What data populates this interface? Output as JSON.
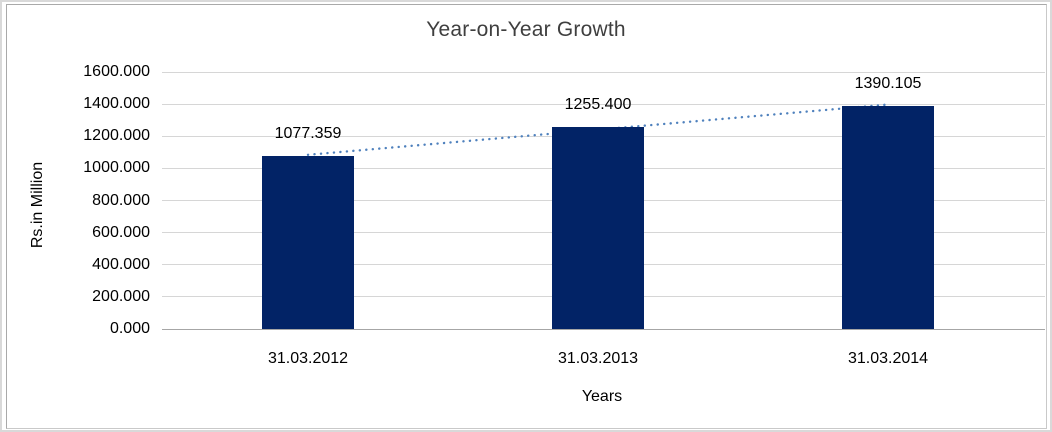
{
  "chart_data": {
    "type": "bar",
    "title": "Year-on-Year Growth",
    "xlabel": "Years",
    "ylabel": "Rs.in Million",
    "categories": [
      "31.03.2012",
      "31.03.2013",
      "31.03.2014"
    ],
    "values": [
      1077.359,
      1255.4,
      1390.105
    ],
    "value_labels": [
      "1077.359",
      "1255.400",
      "1390.105"
    ],
    "ylim": [
      0,
      1600
    ],
    "ytick_step": 200,
    "ytick_labels": [
      "0.000",
      "200.000",
      "400.000",
      "600.000",
      "800.000",
      "1000.000",
      "1200.000",
      "1400.000",
      "1600.000"
    ],
    "grid": "horizontal-only",
    "legend": "none",
    "bar_color": "#022366",
    "trendline": {
      "type": "linear",
      "style": "dotted",
      "color": "#4F81BD"
    }
  }
}
